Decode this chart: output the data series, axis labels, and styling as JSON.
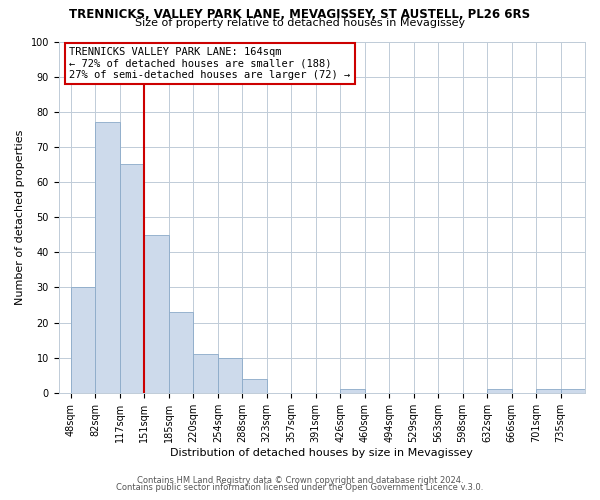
{
  "title": "TRENNICKS, VALLEY PARK LANE, MEVAGISSEY, ST AUSTELL, PL26 6RS",
  "subtitle": "Size of property relative to detached houses in Mevagissey",
  "xlabel": "Distribution of detached houses by size in Mevagissey",
  "ylabel": "Number of detached properties",
  "bin_labels": [
    "48sqm",
    "82sqm",
    "117sqm",
    "151sqm",
    "185sqm",
    "220sqm",
    "254sqm",
    "288sqm",
    "323sqm",
    "357sqm",
    "391sqm",
    "426sqm",
    "460sqm",
    "494sqm",
    "529sqm",
    "563sqm",
    "598sqm",
    "632sqm",
    "666sqm",
    "701sqm",
    "735sqm"
  ],
  "bar_heights": [
    30,
    77,
    65,
    45,
    23,
    11,
    10,
    4,
    0,
    0,
    0,
    1,
    0,
    0,
    0,
    0,
    0,
    1,
    0,
    1,
    1
  ],
  "bar_color": "#cddaeb",
  "bar_edge_color": "#8baac8",
  "vline_color": "#cc0000",
  "vline_pos": 3.0,
  "ylim": [
    0,
    100
  ],
  "yticks": [
    0,
    10,
    20,
    30,
    40,
    50,
    60,
    70,
    80,
    90,
    100
  ],
  "annotation_title": "TRENNICKS VALLEY PARK LANE: 164sqm",
  "annotation_line1": "← 72% of detached houses are smaller (188)",
  "annotation_line2": "27% of semi-detached houses are larger (72) →",
  "footnote1": "Contains HM Land Registry data © Crown copyright and database right 2024.",
  "footnote2": "Contains public sector information licensed under the Open Government Licence v.3.0.",
  "background_color": "#ffffff",
  "grid_color": "#c0ccd8",
  "title_fontsize": 8.5,
  "subtitle_fontsize": 8,
  "axis_label_fontsize": 8,
  "tick_fontsize": 7,
  "footnote_fontsize": 6,
  "annotation_fontsize": 7.5
}
